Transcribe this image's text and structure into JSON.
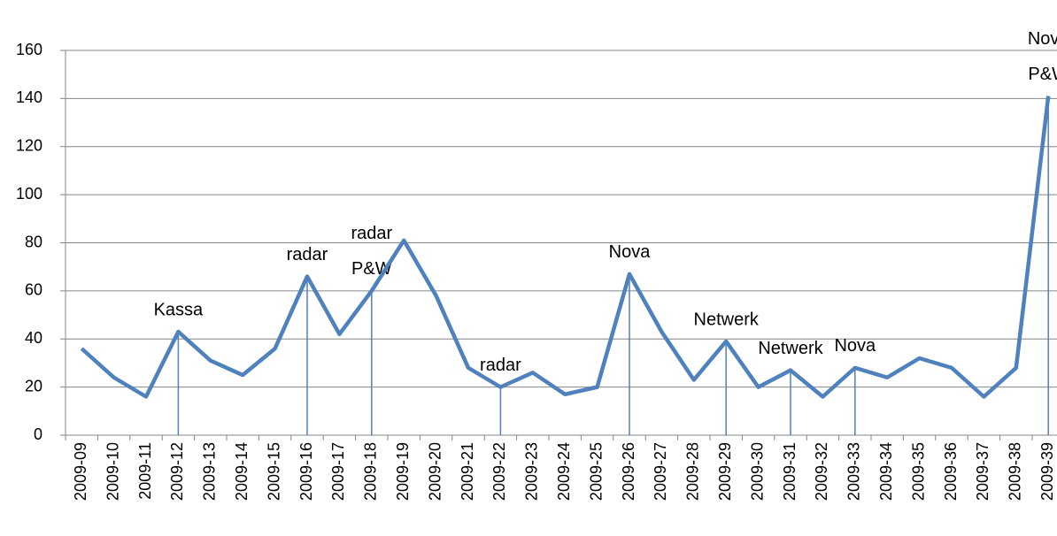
{
  "chart_data": {
    "type": "line",
    "categories": [
      "2009-09",
      "2009-10",
      "2009-11",
      "2009-12",
      "2009-13",
      "2009-14",
      "2009-15",
      "2009-16",
      "2009-17",
      "2009-18",
      "2009-19",
      "2009-20",
      "2009-21",
      "2009-22",
      "2009-23",
      "2009-24",
      "2009-25",
      "2009-26",
      "2009-27",
      "2009-28",
      "2009-29",
      "2009-30",
      "2009-31",
      "2009-32",
      "2009-33",
      "2009-34",
      "2009-35",
      "2009-36",
      "2009-37",
      "2009-38",
      "2009-39"
    ],
    "values": [
      36,
      24,
      16,
      43,
      31,
      25,
      36,
      66,
      42,
      60,
      81,
      58,
      28,
      20,
      26,
      17,
      20,
      67,
      43,
      23,
      39,
      20,
      27,
      16,
      28,
      24,
      32,
      28,
      16,
      28,
      141
    ],
    "color": "#4f81bd",
    "ylim": [
      0,
      160
    ],
    "yticks": [
      0,
      20,
      40,
      60,
      80,
      100,
      120,
      140,
      160
    ],
    "grid": true,
    "annotations": [
      {
        "category": "2009-12",
        "lines": [
          "Kassa"
        ]
      },
      {
        "category": "2009-16",
        "lines": [
          "radar"
        ]
      },
      {
        "category": "2009-18",
        "lines": [
          "radar",
          "P&W"
        ]
      },
      {
        "category": "2009-22",
        "lines": [
          "radar"
        ]
      },
      {
        "category": "2009-26",
        "lines": [
          "Nova"
        ]
      },
      {
        "category": "2009-29",
        "lines": [
          "Netwerk"
        ]
      },
      {
        "category": "2009-31",
        "lines": [
          "Netwerk"
        ]
      },
      {
        "category": "2009-33",
        "lines": [
          "Nova"
        ]
      },
      {
        "category": "2009-39",
        "lines": [
          "Nova",
          "P&W"
        ]
      }
    ]
  }
}
